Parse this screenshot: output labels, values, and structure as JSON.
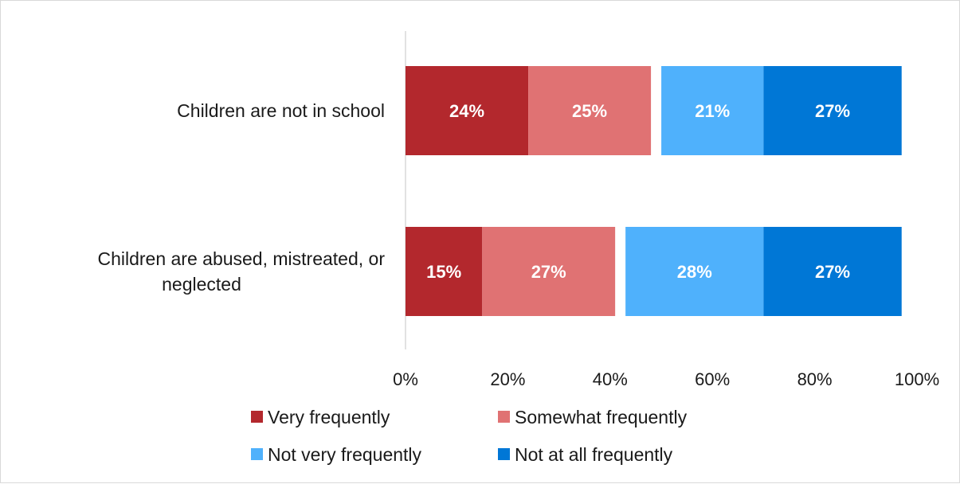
{
  "chart_data": {
    "type": "bar",
    "orientation": "horizontal",
    "stacked": true,
    "categories": [
      "Children are not in school",
      "Children are abused, mistreated, or neglected"
    ],
    "category_lines": [
      [
        "Children are not in school"
      ],
      [
        "Children are abused, mistreated, or",
        "neglected"
      ]
    ],
    "series": [
      {
        "name": "Very frequently",
        "color": "#b3282d",
        "values": [
          24,
          15
        ],
        "labels": [
          "24%",
          "15%"
        ]
      },
      {
        "name": "Somewhat frequently",
        "color": "#e07273",
        "values": [
          25,
          27
        ],
        "labels": [
          "25%",
          "27%"
        ]
      },
      {
        "name": "Not very frequently",
        "color": "#4fb1fc",
        "values": [
          21,
          28
        ],
        "labels": [
          "21%",
          "28%"
        ]
      },
      {
        "name": "Not at all frequently",
        "color": "#0077d6",
        "values": [
          27,
          27
        ],
        "labels": [
          "27%",
          "27%"
        ]
      }
    ],
    "gap_after_series": "Somewhat frequently",
    "xlim": [
      0,
      100
    ],
    "x_ticks": [
      "0%",
      "20%",
      "40%",
      "60%",
      "80%",
      "100%"
    ],
    "grid": false,
    "legend_position": "bottom",
    "title": "",
    "xlabel": "",
    "ylabel": ""
  }
}
